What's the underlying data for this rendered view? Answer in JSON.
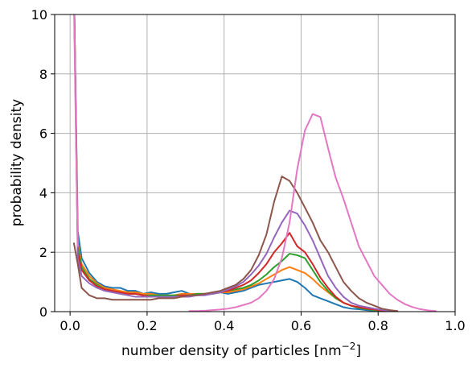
{
  "chart_data": {
    "type": "line",
    "xlabel": "number density of particles [nm",
    "xlabel_sup": "−2",
    "xlabel_end": "]",
    "ylabel": "probability density",
    "xlim": [
      -0.04,
      1.0
    ],
    "ylim": [
      0,
      10
    ],
    "grid": true,
    "xticks": [
      0.0,
      0.2,
      0.4,
      0.6,
      0.8,
      1.0
    ],
    "xtick_labels": [
      "0.0",
      "0.2",
      "0.4",
      "0.6",
      "0.8",
      "1.0"
    ],
    "yticks": [
      0,
      2,
      4,
      6,
      8,
      10
    ],
    "ytick_labels": [
      "0",
      "2",
      "4",
      "6",
      "8",
      "10"
    ],
    "series": [
      {
        "color": "#1f77b4",
        "x": [
          0.01,
          0.02,
          0.03,
          0.05,
          0.07,
          0.09,
          0.11,
          0.13,
          0.15,
          0.17,
          0.19,
          0.21,
          0.23,
          0.25,
          0.27,
          0.29,
          0.31,
          0.33,
          0.35,
          0.37,
          0.39,
          0.41,
          0.43,
          0.45,
          0.47,
          0.49,
          0.51,
          0.53,
          0.55,
          0.57,
          0.59,
          0.61,
          0.63,
          0.65,
          0.67,
          0.69,
          0.71,
          0.73,
          0.75,
          0.77,
          0.79,
          0.81,
          0.83,
          0.85
        ],
        "y": [
          11,
          2.7,
          1.8,
          1.3,
          1.0,
          0.85,
          0.8,
          0.8,
          0.7,
          0.7,
          0.6,
          0.65,
          0.6,
          0.6,
          0.65,
          0.7,
          0.6,
          0.55,
          0.6,
          0.6,
          0.65,
          0.6,
          0.65,
          0.7,
          0.8,
          0.9,
          0.95,
          1.0,
          1.05,
          1.1,
          1.0,
          0.8,
          0.55,
          0.45,
          0.35,
          0.25,
          0.15,
          0.1,
          0.08,
          0.05,
          0.03,
          0.02,
          0.01,
          0
        ]
      },
      {
        "color": "#ff7f0e",
        "x": [
          0.01,
          0.02,
          0.03,
          0.05,
          0.07,
          0.09,
          0.11,
          0.13,
          0.15,
          0.17,
          0.19,
          0.21,
          0.23,
          0.25,
          0.27,
          0.29,
          0.31,
          0.33,
          0.35,
          0.37,
          0.39,
          0.41,
          0.43,
          0.45,
          0.47,
          0.49,
          0.51,
          0.53,
          0.55,
          0.57,
          0.59,
          0.61,
          0.63,
          0.65,
          0.67,
          0.69,
          0.71,
          0.73,
          0.75,
          0.77,
          0.79,
          0.81,
          0.83,
          0.85
        ],
        "y": [
          11,
          2.3,
          1.6,
          1.2,
          0.95,
          0.8,
          0.75,
          0.7,
          0.65,
          0.65,
          0.6,
          0.6,
          0.55,
          0.55,
          0.55,
          0.6,
          0.6,
          0.6,
          0.6,
          0.6,
          0.65,
          0.65,
          0.7,
          0.75,
          0.85,
          0.95,
          1.1,
          1.25,
          1.4,
          1.5,
          1.4,
          1.3,
          1.1,
          0.85,
          0.65,
          0.45,
          0.3,
          0.2,
          0.15,
          0.1,
          0.06,
          0.04,
          0.02,
          0.01
        ]
      },
      {
        "color": "#2ca02c",
        "x": [
          0.01,
          0.02,
          0.03,
          0.05,
          0.07,
          0.09,
          0.11,
          0.13,
          0.15,
          0.17,
          0.19,
          0.21,
          0.23,
          0.25,
          0.27,
          0.29,
          0.31,
          0.33,
          0.35,
          0.37,
          0.39,
          0.41,
          0.43,
          0.45,
          0.47,
          0.49,
          0.51,
          0.53,
          0.55,
          0.57,
          0.59,
          0.61,
          0.63,
          0.65,
          0.67,
          0.69,
          0.71,
          0.73,
          0.75,
          0.77,
          0.79,
          0.81,
          0.83,
          0.85
        ],
        "y": [
          11,
          2.2,
          1.5,
          1.1,
          0.9,
          0.75,
          0.7,
          0.65,
          0.6,
          0.6,
          0.55,
          0.55,
          0.55,
          0.55,
          0.55,
          0.55,
          0.55,
          0.6,
          0.6,
          0.6,
          0.65,
          0.7,
          0.75,
          0.8,
          0.9,
          1.05,
          1.25,
          1.5,
          1.7,
          1.95,
          1.9,
          1.8,
          1.4,
          1.0,
          0.7,
          0.45,
          0.3,
          0.2,
          0.12,
          0.08,
          0.05,
          0.03,
          0.02,
          0.01
        ]
      },
      {
        "color": "#d62728",
        "x": [
          0.01,
          0.02,
          0.03,
          0.05,
          0.07,
          0.09,
          0.11,
          0.13,
          0.15,
          0.17,
          0.19,
          0.21,
          0.23,
          0.25,
          0.27,
          0.29,
          0.31,
          0.33,
          0.35,
          0.37,
          0.39,
          0.41,
          0.43,
          0.45,
          0.47,
          0.49,
          0.51,
          0.53,
          0.55,
          0.57,
          0.59,
          0.61,
          0.63,
          0.65,
          0.67,
          0.69,
          0.71,
          0.73,
          0.75,
          0.77,
          0.79,
          0.81,
          0.83,
          0.85
        ],
        "y": [
          11,
          2.0,
          1.4,
          1.05,
          0.85,
          0.75,
          0.7,
          0.65,
          0.6,
          0.6,
          0.55,
          0.5,
          0.5,
          0.5,
          0.5,
          0.55,
          0.55,
          0.55,
          0.6,
          0.6,
          0.65,
          0.7,
          0.8,
          0.9,
          1.05,
          1.3,
          1.6,
          2.0,
          2.3,
          2.65,
          2.2,
          2.0,
          1.6,
          1.15,
          0.8,
          0.5,
          0.3,
          0.2,
          0.15,
          0.1,
          0.07,
          0.04,
          0.02,
          0.01
        ]
      },
      {
        "color": "#9467bd",
        "x": [
          0.01,
          0.02,
          0.03,
          0.05,
          0.07,
          0.09,
          0.11,
          0.13,
          0.15,
          0.17,
          0.19,
          0.21,
          0.23,
          0.25,
          0.27,
          0.29,
          0.31,
          0.33,
          0.35,
          0.37,
          0.39,
          0.41,
          0.43,
          0.45,
          0.47,
          0.49,
          0.51,
          0.53,
          0.55,
          0.57,
          0.59,
          0.61,
          0.63,
          0.65,
          0.67,
          0.69,
          0.71,
          0.73,
          0.75,
          0.77,
          0.79,
          0.81,
          0.83,
          0.85
        ],
        "y": [
          11,
          1.8,
          1.2,
          0.95,
          0.8,
          0.7,
          0.65,
          0.6,
          0.55,
          0.5,
          0.5,
          0.5,
          0.5,
          0.5,
          0.5,
          0.5,
          0.5,
          0.55,
          0.55,
          0.6,
          0.65,
          0.75,
          0.85,
          1.0,
          1.25,
          1.55,
          1.95,
          2.5,
          3.0,
          3.4,
          3.3,
          2.9,
          2.4,
          1.8,
          1.2,
          0.8,
          0.5,
          0.3,
          0.2,
          0.15,
          0.1,
          0.06,
          0.03,
          0.01
        ]
      },
      {
        "color": "#8c564b",
        "x": [
          0.01,
          0.02,
          0.03,
          0.05,
          0.07,
          0.09,
          0.11,
          0.13,
          0.15,
          0.17,
          0.19,
          0.21,
          0.23,
          0.25,
          0.27,
          0.29,
          0.31,
          0.33,
          0.35,
          0.37,
          0.39,
          0.41,
          0.43,
          0.45,
          0.47,
          0.49,
          0.51,
          0.53,
          0.55,
          0.57,
          0.59,
          0.61,
          0.63,
          0.65,
          0.67,
          0.69,
          0.71,
          0.73,
          0.75,
          0.77,
          0.79,
          0.81,
          0.83,
          0.85
        ],
        "y": [
          2.3,
          1.6,
          0.8,
          0.55,
          0.45,
          0.45,
          0.4,
          0.4,
          0.4,
          0.4,
          0.4,
          0.4,
          0.45,
          0.45,
          0.45,
          0.5,
          0.55,
          0.55,
          0.6,
          0.65,
          0.7,
          0.8,
          0.9,
          1.1,
          1.4,
          1.9,
          2.6,
          3.7,
          4.55,
          4.4,
          4.0,
          3.5,
          3.0,
          2.4,
          2.0,
          1.5,
          1.0,
          0.7,
          0.45,
          0.3,
          0.2,
          0.1,
          0.05,
          0.02
        ]
      },
      {
        "color": "#e377c2",
        "x": [
          0.31,
          0.33,
          0.35,
          0.37,
          0.39,
          0.41,
          0.43,
          0.45,
          0.47,
          0.49,
          0.51,
          0.53,
          0.55,
          0.57,
          0.59,
          0.61,
          0.63,
          0.65,
          0.67,
          0.69,
          0.71,
          0.73,
          0.75,
          0.77,
          0.79,
          0.81,
          0.83,
          0.85,
          0.87,
          0.89,
          0.91,
          0.93,
          0.95
        ],
        "y": [
          0.02,
          0.02,
          0.03,
          0.05,
          0.07,
          0.1,
          0.15,
          0.22,
          0.3,
          0.45,
          0.7,
          1.1,
          1.8,
          3.0,
          4.8,
          6.1,
          6.65,
          6.55,
          5.5,
          4.5,
          3.8,
          3.0,
          2.2,
          1.7,
          1.2,
          0.9,
          0.6,
          0.4,
          0.25,
          0.15,
          0.08,
          0.04,
          0.02
        ]
      },
      {
        "color": "#e377c2",
        "x": [
          0.01,
          0.015,
          0.02
        ],
        "y": [
          10.5,
          6.0,
          2.2
        ]
      }
    ]
  }
}
